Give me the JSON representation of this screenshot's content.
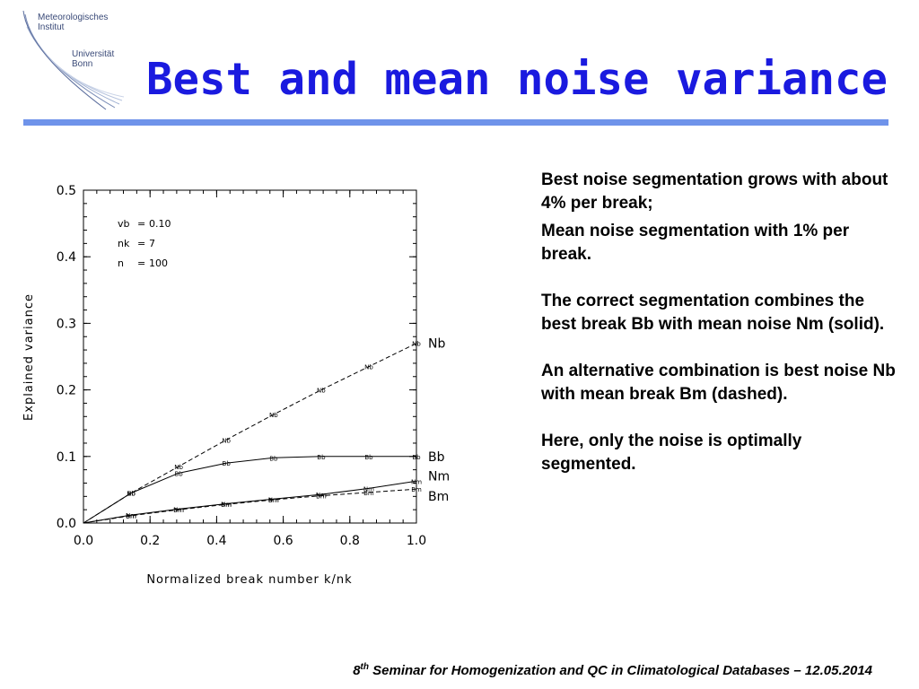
{
  "logo": {
    "line1": "Meteorologisches",
    "line2": "Institut",
    "line3": "Universität",
    "line4": "Bonn"
  },
  "title": "Best and mean noise variance",
  "body": {
    "p1": "Best noise segmentation grows with about 4% per break;",
    "p2": "Mean noise segmentation with 1% per break.",
    "p3": "The correct segmentation combines the best break Bb with mean noise Nm (solid).",
    "p4": "An alternative combination is best noise Nb with mean break Bm (dashed).",
    "p5": "Here, only the noise is optimally segmented."
  },
  "footer": {
    "prefix": "8",
    "sup": "th",
    "rest": " Seminar for Homogenization and QC in Climatological Databases – 12.05.2014"
  },
  "chart_data": {
    "type": "line",
    "xlabel": "Normalized break number k/nk",
    "ylabel": "Explained variance",
    "xlim": [
      0.0,
      1.0
    ],
    "ylim": [
      0.0,
      0.5
    ],
    "x_ticks": [
      "0.0",
      "0.2",
      "0.4",
      "0.6",
      "0.8",
      "1.0"
    ],
    "y_ticks": [
      "0.0",
      "0.1",
      "0.2",
      "0.3",
      "0.4",
      "0.5"
    ],
    "annotations": [
      {
        "label": "vb",
        "value": "0.10"
      },
      {
        "label": "nk",
        "value": "7"
      },
      {
        "label": "n",
        "value": "100"
      }
    ],
    "x": [
      0.0,
      0.143,
      0.286,
      0.429,
      0.571,
      0.714,
      0.857,
      1.0
    ],
    "series": [
      {
        "name": "Nb",
        "style": "dashed",
        "values": [
          0.0,
          0.045,
          0.085,
          0.125,
          0.163,
          0.2,
          0.235,
          0.27
        ]
      },
      {
        "name": "Bb",
        "style": "solid",
        "values": [
          0.0,
          0.045,
          0.075,
          0.09,
          0.098,
          0.1,
          0.1,
          0.1
        ]
      },
      {
        "name": "Nm",
        "style": "solid",
        "values": [
          0.0,
          0.012,
          0.021,
          0.029,
          0.036,
          0.043,
          0.052,
          0.063
        ]
      },
      {
        "name": "Bm",
        "style": "dashed",
        "values": [
          0.0,
          0.011,
          0.02,
          0.028,
          0.035,
          0.041,
          0.046,
          0.051
        ]
      }
    ],
    "colors": {
      "axes": "#000000",
      "title": "#1a1adf",
      "rule": "#6f93ea"
    }
  }
}
